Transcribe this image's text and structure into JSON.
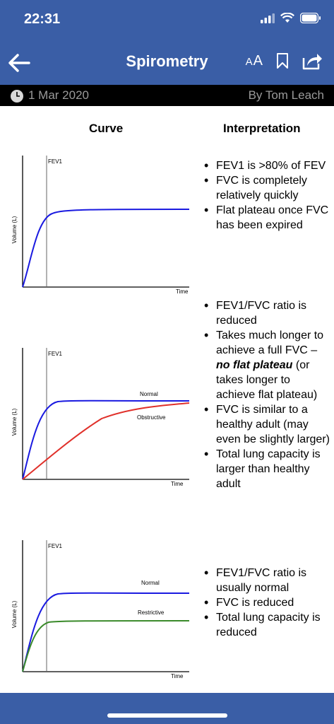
{
  "status": {
    "time": "22:31"
  },
  "header": {
    "title": "Spirometry",
    "text_size_label_big": "A",
    "text_size_label_small": "A"
  },
  "meta": {
    "date": "1 Mar 2020",
    "author": "By Tom Leach"
  },
  "columns": {
    "curve": "Curve",
    "interpretation": "Interpretation"
  },
  "colors": {
    "brand": "#3a5ea6",
    "normal": "#1a1ae0",
    "obstructive": "#e0302a",
    "restrictive": "#3a8a2a"
  },
  "sections": [
    {
      "bullets": [
        "FEV1 is >80% of FEV",
        "FVC is completely relatively quickly",
        "Flat plateau once FVC has been expired"
      ]
    },
    {
      "bullets_html": [
        "FEV1/FVC ratio is reduced",
        "Takes much longer to achieve a full FVC – <b><i>no flat plateau</i></b> (or takes longer to achieve flat plateau)",
        "FVC is similar to a healthy adult (may even be slightly larger)",
        "Total lung capacity is larger than healthy adult"
      ]
    },
    {
      "bullets": [
        "FEV1/FVC ratio is usually normal",
        "FVC is reduced",
        "Total lung capacity is reduced"
      ]
    }
  ],
  "chart_data": [
    {
      "type": "line",
      "xlabel": "Time",
      "ylabel": "Volume (L)",
      "marker_label": "FEV1",
      "series": [
        {
          "name": "",
          "color": "#1a1ae0",
          "shape": "fast-rise-plateau"
        }
      ]
    },
    {
      "type": "line",
      "xlabel": "Time",
      "ylabel": "Volume (L)",
      "marker_label": "FEV1",
      "series": [
        {
          "name": "Normal",
          "color": "#1a1ae0",
          "shape": "fast-rise-plateau"
        },
        {
          "name": "Obstructive",
          "color": "#e0302a",
          "shape": "slow-rise-no-plateau"
        }
      ]
    },
    {
      "type": "line",
      "xlabel": "Time",
      "ylabel": "Volume (L)",
      "marker_label": "FEV1",
      "series": [
        {
          "name": "Normal",
          "color": "#1a1ae0",
          "shape": "fast-rise-plateau"
        },
        {
          "name": "Restrictive",
          "color": "#3a8a2a",
          "shape": "fast-rise-low-plateau"
        }
      ]
    }
  ]
}
